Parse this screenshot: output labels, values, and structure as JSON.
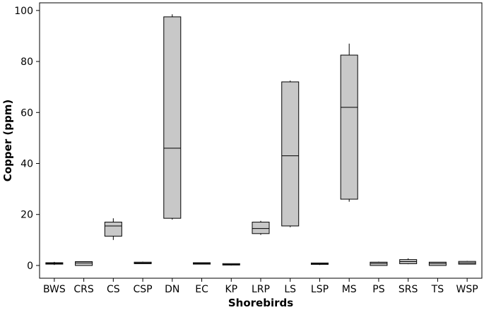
{
  "chart_data": {
    "type": "box",
    "xlabel": "Shorebirds",
    "ylabel": "Copper (ppm)",
    "ylim": [
      -5,
      103
    ],
    "yticks": [
      0,
      20,
      40,
      60,
      80,
      100
    ],
    "grid": false,
    "categories": [
      "BWS",
      "CRS",
      "CS",
      "CSP",
      "DN",
      "EC",
      "KP",
      "LRP",
      "LS",
      "LSP",
      "MS",
      "PS",
      "SRS",
      "TS",
      "WSP"
    ],
    "boxes": [
      {
        "category": "BWS",
        "min": 0.2,
        "q1": 0.6,
        "median": 0.8,
        "q3": 1.0,
        "max": 1.4
      },
      {
        "category": "CRS",
        "min": 0.0,
        "q1": 0.0,
        "median": 1.0,
        "q3": 1.5,
        "max": 1.5
      },
      {
        "category": "CS",
        "min": 10.0,
        "q1": 11.5,
        "median": 15.5,
        "q3": 17.0,
        "max": 18.5
      },
      {
        "category": "CSP",
        "min": 0.7,
        "q1": 0.7,
        "median": 1.0,
        "q3": 1.3,
        "max": 1.5
      },
      {
        "category": "DN",
        "min": 18.0,
        "q1": 18.5,
        "median": 46.0,
        "q3": 97.5,
        "max": 98.5
      },
      {
        "category": "EC",
        "min": 0.5,
        "q1": 0.6,
        "median": 0.8,
        "q3": 1.0,
        "max": 1.0
      },
      {
        "category": "KP",
        "min": 0.0,
        "q1": 0.2,
        "median": 0.4,
        "q3": 0.7,
        "max": 0.8
      },
      {
        "category": "LRP",
        "min": 12.0,
        "q1": 12.5,
        "median": 14.5,
        "q3": 17.0,
        "max": 17.5
      },
      {
        "category": "LS",
        "min": 15.0,
        "q1": 15.5,
        "median": 43.0,
        "q3": 72.0,
        "max": 72.5
      },
      {
        "category": "LSP",
        "min": 0.2,
        "q1": 0.5,
        "median": 0.7,
        "q3": 0.9,
        "max": 1.0
      },
      {
        "category": "MS",
        "min": 25.0,
        "q1": 26.0,
        "median": 62.0,
        "q3": 82.5,
        "max": 87.0
      },
      {
        "category": "PS",
        "min": 0.0,
        "q1": 0.0,
        "median": 0.8,
        "q3": 1.3,
        "max": 1.5
      },
      {
        "category": "SRS",
        "min": 0.5,
        "q1": 0.7,
        "median": 1.5,
        "q3": 2.3,
        "max": 2.8
      },
      {
        "category": "TS",
        "min": 0.0,
        "q1": 0.0,
        "median": 0.8,
        "q3": 1.3,
        "max": 1.3
      },
      {
        "category": "WSP",
        "min": 0.5,
        "q1": 0.5,
        "median": 1.0,
        "q3": 1.6,
        "max": 1.8
      }
    ],
    "colors": {
      "box_fill": "#c8c8c8",
      "stroke": "#000000"
    }
  }
}
